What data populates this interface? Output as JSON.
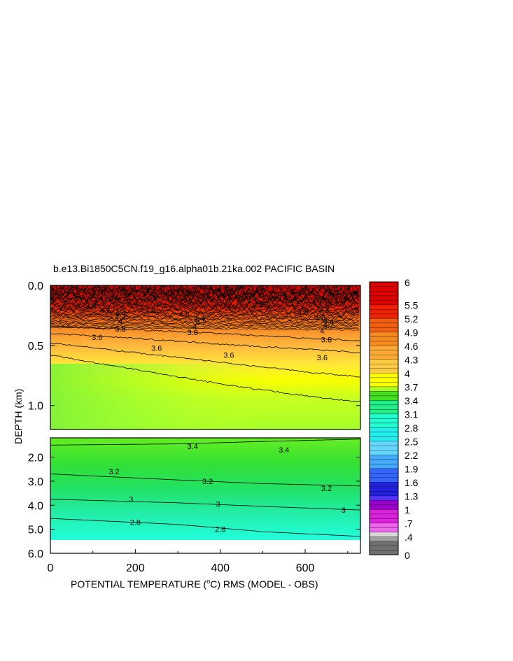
{
  "chart_data": {
    "type": "heatmap",
    "title": "b.e13.Bi1850C5CN.f19_g16.alpha01b.21ka.002 PACIFIC BASIN",
    "ylabel": "DEPTH (km)",
    "xlabel_parts": [
      "POTENTIAL TEMPERATURE (",
      "o",
      "C) RMS (MODEL - OBS)"
    ],
    "x_ticks": [
      "0",
      "200",
      "400",
      "600"
    ],
    "x_tick_values": [
      0,
      200,
      400,
      600
    ],
    "xlim": [
      0,
      730
    ],
    "upper_panel": {
      "ylim": [
        0.0,
        1.2
      ],
      "y_ticks": [
        "0.0",
        "0.5",
        "1.0"
      ],
      "y_tick_values": [
        0.0,
        0.5,
        1.0
      ]
    },
    "lower_panel": {
      "ylim": [
        1.2,
        6.0
      ],
      "y_ticks": [
        "2.0",
        "3.0",
        "4.0",
        "5.0",
        "6.0"
      ],
      "y_tick_values": [
        2.0,
        3.0,
        4.0,
        5.0,
        6.0
      ],
      "data_bottom_depth": 5.4
    },
    "colorbar": {
      "labels": [
        "6",
        "5.5",
        "5.2",
        "4.9",
        "4.6",
        "4.3",
        "4",
        "3.7",
        "3.4",
        "3.1",
        "2.8",
        "2.5",
        "2.2",
        "1.9",
        "1.6",
        "1.3",
        "1",
        ".7",
        ".4",
        "0"
      ],
      "label_values": [
        6,
        5.5,
        5.2,
        4.9,
        4.6,
        4.3,
        4,
        3.7,
        3.4,
        3.1,
        2.8,
        2.5,
        2.2,
        1.9,
        1.6,
        1.3,
        1,
        0.7,
        0.4,
        0
      ],
      "range": [
        0,
        6
      ]
    },
    "contours_upper": [
      {
        "level": 3.6,
        "depth_at_x": [
          [
            0,
            0.58
          ],
          [
            200,
            0.7
          ],
          [
            400,
            0.82
          ],
          [
            600,
            0.92
          ],
          [
            730,
            0.97
          ]
        ]
      },
      {
        "level": 3.8,
        "depth_at_x": [
          [
            0,
            0.48
          ],
          [
            200,
            0.56
          ],
          [
            400,
            0.64
          ],
          [
            600,
            0.72
          ],
          [
            730,
            0.76
          ]
        ]
      },
      {
        "level": 4.2,
        "depth_at_x": [
          [
            0,
            0.4
          ],
          [
            200,
            0.44
          ],
          [
            400,
            0.49
          ],
          [
            600,
            0.53
          ],
          [
            730,
            0.56
          ]
        ]
      },
      {
        "level": 4.6,
        "depth_at_x": [
          [
            0,
            0.34
          ],
          [
            200,
            0.37
          ],
          [
            400,
            0.4
          ],
          [
            600,
            0.44
          ],
          [
            730,
            0.46
          ]
        ]
      }
    ],
    "contours_lower": [
      {
        "level": 3.4,
        "depth_at_x": [
          [
            0,
            1.5
          ],
          [
            300,
            1.45
          ],
          [
            500,
            1.35
          ],
          [
            730,
            1.25
          ]
        ]
      },
      {
        "level": 3.2,
        "depth_at_x": [
          [
            0,
            2.7
          ],
          [
            300,
            2.95
          ],
          [
            500,
            3.1
          ],
          [
            730,
            3.2
          ]
        ]
      },
      {
        "level": 3,
        "depth_at_x": [
          [
            0,
            3.75
          ],
          [
            300,
            3.9
          ],
          [
            500,
            4.05
          ],
          [
            730,
            4.2
          ]
        ]
      },
      {
        "level": 2.8,
        "depth_at_x": [
          [
            0,
            4.55
          ],
          [
            300,
            4.8
          ],
          [
            500,
            5.1
          ],
          [
            730,
            5.3
          ]
        ]
      }
    ],
    "contour_labels_upper": [
      {
        "text": "3.8",
        "x": 95,
        "y": 0.17
      },
      {
        "text": "4.6",
        "x": 130,
        "y": 0.21
      },
      {
        "text": "4.4",
        "x": 165,
        "y": 0.23
      },
      {
        "text": "4.2",
        "x": 165,
        "y": 0.26
      },
      {
        "text": "4",
        "x": 165,
        "y": 0.3
      },
      {
        "text": "3.8",
        "x": 165,
        "y": 0.36
      },
      {
        "text": "3.6",
        "x": 110,
        "y": 0.43
      },
      {
        "text": "4.8",
        "x": 235,
        "y": 0.2
      },
      {
        "text": "3.6",
        "x": 250,
        "y": 0.52
      },
      {
        "text": "4.6",
        "x": 315,
        "y": 0.24
      },
      {
        "text": "4.4",
        "x": 350,
        "y": 0.27
      },
      {
        "text": "4.2",
        "x": 355,
        "y": 0.31
      },
      {
        "text": "4",
        "x": 340,
        "y": 0.34
      },
      {
        "text": "3.8",
        "x": 335,
        "y": 0.39
      },
      {
        "text": "3.6",
        "x": 420,
        "y": 0.58
      },
      {
        "text": "5.2",
        "x": 505,
        "y": 0.16
      },
      {
        "text": "4.8",
        "x": 595,
        "y": 0.22
      },
      {
        "text": "4.6",
        "x": 635,
        "y": 0.27
      },
      {
        "text": "4.4",
        "x": 655,
        "y": 0.3
      },
      {
        "text": "4.2",
        "x": 655,
        "y": 0.33
      },
      {
        "text": "4",
        "x": 640,
        "y": 0.38
      },
      {
        "text": "3.8",
        "x": 650,
        "y": 0.45
      },
      {
        "text": "3.6",
        "x": 640,
        "y": 0.6
      },
      {
        "text": "5.2",
        "x": 645,
        "y": 0.19
      }
    ],
    "contour_labels_lower": [
      {
        "text": "3.4",
        "x": 335,
        "y": 1.55
      },
      {
        "text": "3.4",
        "x": 550,
        "y": 1.7
      },
      {
        "text": "3.2",
        "x": 150,
        "y": 2.6
      },
      {
        "text": "3.2",
        "x": 370,
        "y": 3.0
      },
      {
        "text": "3.2",
        "x": 650,
        "y": 3.3
      },
      {
        "text": "3",
        "x": 190,
        "y": 3.75
      },
      {
        "text": "3",
        "x": 395,
        "y": 3.95
      },
      {
        "text": "3",
        "x": 690,
        "y": 4.2
      },
      {
        "text": "2.8",
        "x": 200,
        "y": 4.7
      },
      {
        "text": "2.8",
        "x": 400,
        "y": 5.0
      }
    ]
  }
}
